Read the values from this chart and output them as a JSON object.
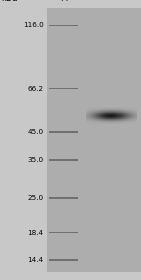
{
  "fig_width": 1.41,
  "fig_height": 2.8,
  "dpi": 100,
  "outer_bg_color": "#c8c8c8",
  "gel_bg_color": "#adadad",
  "ladder_label": "kDa",
  "lane_label": "M",
  "marker_bands": [
    {
      "kda": 116.0,
      "label": "116.0"
    },
    {
      "kda": 66.2,
      "label": "66.2"
    },
    {
      "kda": 45.0,
      "label": "45.0"
    },
    {
      "kda": 35.0,
      "label": "35.0"
    },
    {
      "kda": 25.0,
      "label": "25.0"
    },
    {
      "kda": 18.4,
      "label": "18.4"
    },
    {
      "kda": 14.4,
      "label": "14.4"
    }
  ],
  "sample_band_kda": 52.0,
  "sample_band_kda_spread": 4.0,
  "log_scale_min": 13.0,
  "log_scale_max": 135.0,
  "label_font_size": 5.2,
  "header_font_size": 6.0
}
